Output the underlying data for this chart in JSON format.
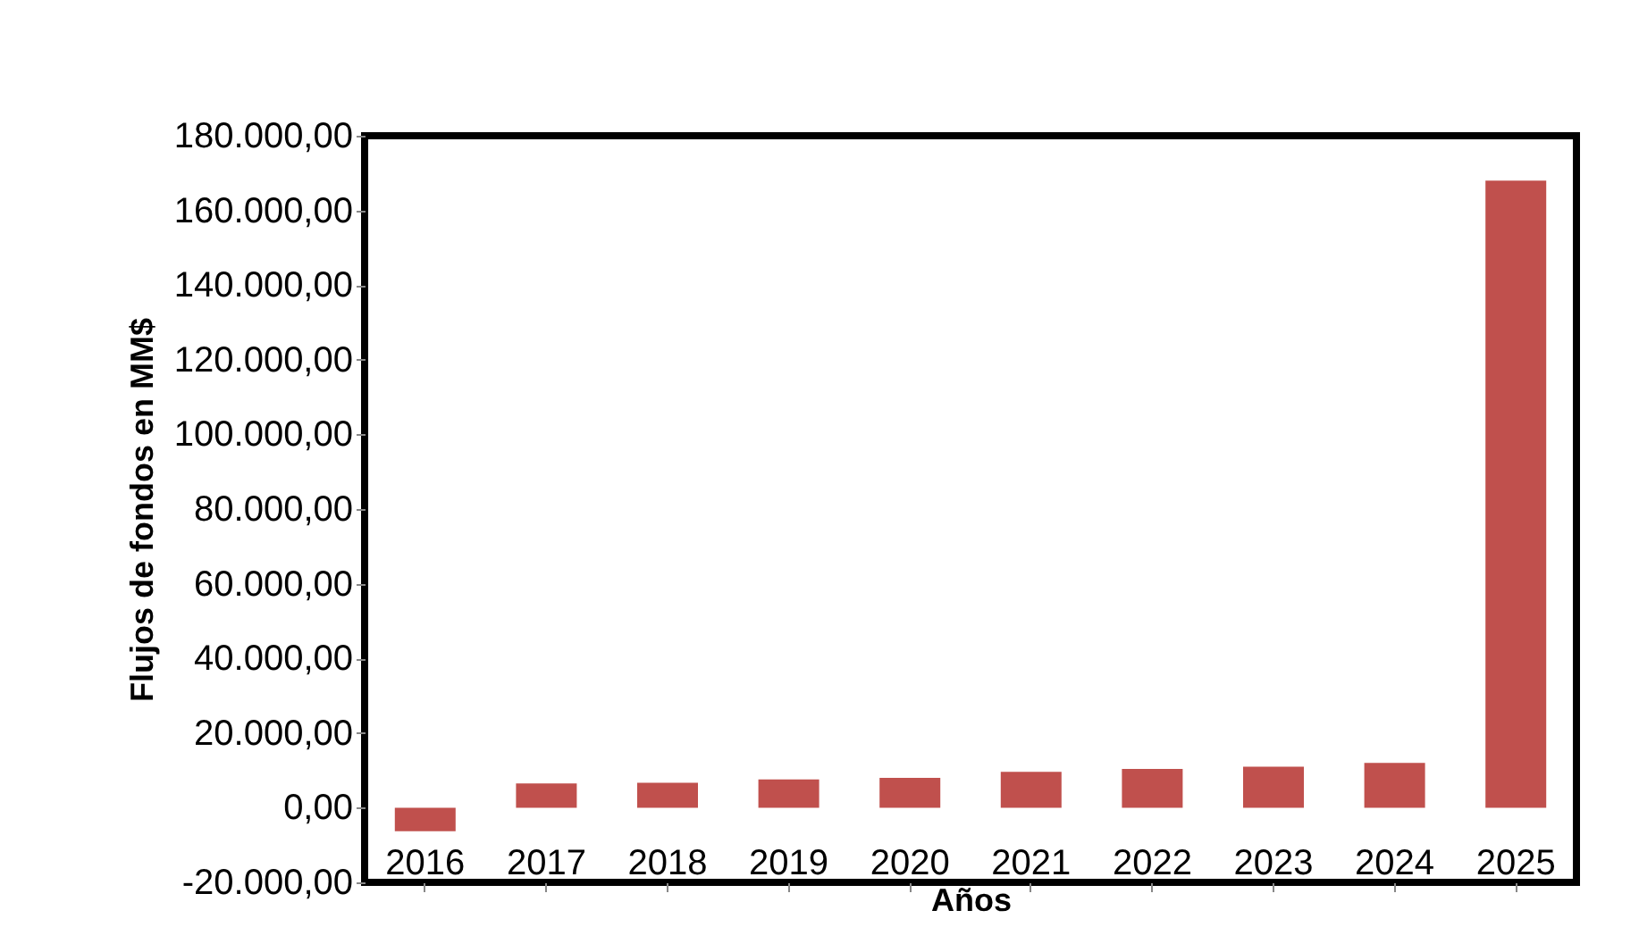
{
  "chart_data": {
    "type": "bar",
    "xlabel": "Años",
    "ylabel": "Flujos de fondos en MM$",
    "categories": [
      "2016",
      "2017",
      "2018",
      "2019",
      "2020",
      "2021",
      "2022",
      "2023",
      "2024",
      "2025"
    ],
    "values": [
      -6300,
      6500,
      6700,
      7600,
      8000,
      9600,
      10400,
      11000,
      12000,
      168000
    ],
    "color": "#c0504d",
    "ylim": [
      -20000,
      180000
    ],
    "yticks": [
      {
        "value": -20000,
        "label": "-20.000,00"
      },
      {
        "value": 0,
        "label": "0,00"
      },
      {
        "value": 20000,
        "label": "20.000,00"
      },
      {
        "value": 40000,
        "label": "40.000,00"
      },
      {
        "value": 60000,
        "label": "60.000,00"
      },
      {
        "value": 80000,
        "label": "80.000,00"
      },
      {
        "value": 100000,
        "label": "100.000,00"
      },
      {
        "value": 120000,
        "label": "120.000,00"
      },
      {
        "value": 140000,
        "label": "140.000,00"
      },
      {
        "value": 160000,
        "label": "160.000,00"
      },
      {
        "value": 180000,
        "label": "180.000,00"
      }
    ],
    "grid": false
  }
}
